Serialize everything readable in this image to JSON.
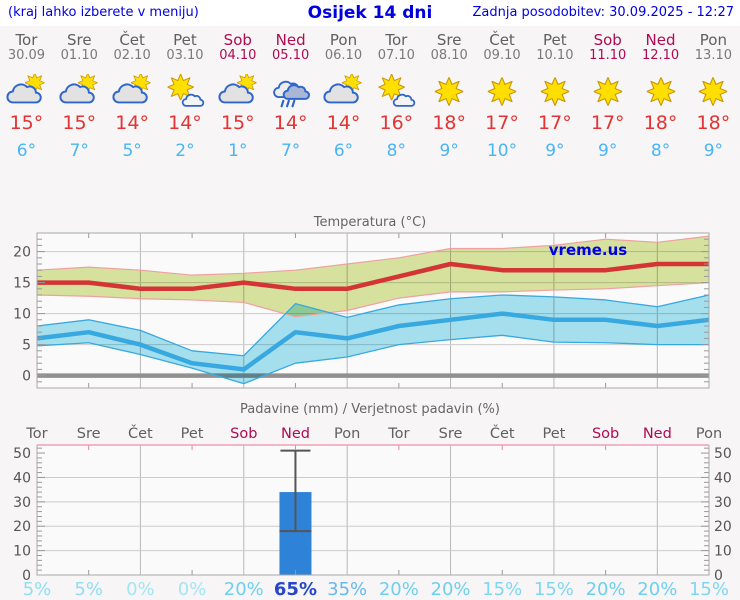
{
  "header": {
    "note": "(kraj lahko izberete v meniju)",
    "title": "Osijek 14 dni",
    "updated": "Zadnja posodobitev: 30.09.2025 - 12:27"
  },
  "watermark": "vreme.us",
  "forecast": {
    "days": [
      {
        "name": "Tor",
        "date": "30.09",
        "icon": "partly-cloudy",
        "high": "15°",
        "low": "6°",
        "weekend": false
      },
      {
        "name": "Sre",
        "date": "01.10",
        "icon": "partly-cloudy",
        "high": "15°",
        "low": "7°",
        "weekend": false
      },
      {
        "name": "Čet",
        "date": "02.10",
        "icon": "partly-cloudy",
        "high": "14°",
        "low": "5°",
        "weekend": false
      },
      {
        "name": "Pet",
        "date": "03.10",
        "icon": "mostly-sunny",
        "high": "14°",
        "low": "2°",
        "weekend": false
      },
      {
        "name": "Sob",
        "date": "04.10",
        "icon": "partly-cloudy",
        "high": "15°",
        "low": "1°",
        "weekend": true
      },
      {
        "name": "Ned",
        "date": "05.10",
        "icon": "rain",
        "high": "14°",
        "low": "7°",
        "weekend": true
      },
      {
        "name": "Pon",
        "date": "06.10",
        "icon": "partly-cloudy",
        "high": "14°",
        "low": "6°",
        "weekend": false
      },
      {
        "name": "Tor",
        "date": "07.10",
        "icon": "mostly-sunny",
        "high": "16°",
        "low": "8°",
        "weekend": false
      },
      {
        "name": "Sre",
        "date": "08.10",
        "icon": "sunny",
        "high": "18°",
        "low": "9°",
        "weekend": false
      },
      {
        "name": "Čet",
        "date": "09.10",
        "icon": "sunny",
        "high": "17°",
        "low": "10°",
        "weekend": false
      },
      {
        "name": "Pet",
        "date": "10.10",
        "icon": "sunny",
        "high": "17°",
        "low": "9°",
        "weekend": false
      },
      {
        "name": "Sob",
        "date": "11.10",
        "icon": "sunny",
        "high": "17°",
        "low": "9°",
        "weekend": true
      },
      {
        "name": "Ned",
        "date": "12.10",
        "icon": "sunny",
        "high": "18°",
        "low": "8°",
        "weekend": true
      },
      {
        "name": "Pon",
        "date": "13.10",
        "icon": "sunny",
        "high": "18°",
        "low": "9°",
        "weekend": false
      }
    ]
  },
  "chart_data": [
    {
      "type": "area",
      "title": "Temperatura (°C)",
      "categories": [
        "Tor",
        "Sre",
        "Čet",
        "Pet",
        "Sob",
        "Ned",
        "Pon",
        "Tor",
        "Sre",
        "Čet",
        "Pet",
        "Sob",
        "Ned",
        "Pon"
      ],
      "ylim": [
        -2,
        23
      ],
      "yticks": [
        0,
        5,
        10,
        15,
        20
      ],
      "grid": true,
      "series": [
        {
          "name": "max-range-upper",
          "values": [
            17,
            17.5,
            17,
            16.2,
            16.5,
            17,
            18,
            19,
            20.5,
            20.5,
            21,
            22,
            21.5,
            22.5
          ]
        },
        {
          "name": "max",
          "values": [
            15,
            15,
            14,
            14,
            15,
            14,
            14,
            16,
            18,
            17,
            17,
            17,
            18,
            18
          ]
        },
        {
          "name": "max-range-lower",
          "values": [
            13,
            12.8,
            12.4,
            12.2,
            11.8,
            9.5,
            10.5,
            12.5,
            13.5,
            13.5,
            13.8,
            14,
            14.5,
            15
          ]
        },
        {
          "name": "min-range-upper",
          "values": [
            8,
            9,
            7.3,
            4,
            3.2,
            11.6,
            9.4,
            11.4,
            12.4,
            13,
            12.7,
            12.2,
            11.1,
            13
          ]
        },
        {
          "name": "min",
          "values": [
            6,
            7,
            5,
            2,
            1,
            7,
            6,
            8,
            9,
            10,
            9,
            9,
            8,
            9
          ]
        },
        {
          "name": "min-range-lower",
          "values": [
            4.8,
            5.3,
            3.4,
            1.2,
            -1.3,
            2,
            3,
            5,
            5.8,
            6.5,
            5.4,
            5.3,
            5,
            5
          ]
        }
      ]
    },
    {
      "type": "bar",
      "title": "Padavine (mm) / Verjetnost padavin (%)",
      "categories": [
        "Tor",
        "Sre",
        "Čet",
        "Pet",
        "Sob",
        "Ned",
        "Pon",
        "Tor",
        "Sre",
        "Čet",
        "Pet",
        "Sob",
        "Ned",
        "Pon"
      ],
      "weekend": [
        false,
        false,
        false,
        false,
        true,
        true,
        false,
        false,
        false,
        false,
        false,
        true,
        true,
        false
      ],
      "ylim": [
        0,
        53
      ],
      "yticks": [
        0,
        10,
        20,
        30,
        40,
        50
      ],
      "grid": true,
      "precip_mm": [
        0,
        0,
        0,
        0,
        0,
        34,
        0,
        0,
        0,
        0,
        0,
        0,
        0,
        0
      ],
      "precip_range": [
        [
          0,
          0
        ],
        [
          0,
          0
        ],
        [
          0,
          0
        ],
        [
          0,
          0
        ],
        [
          0,
          0
        ],
        [
          18,
          51
        ],
        [
          0,
          0
        ],
        [
          0,
          0
        ],
        [
          0,
          0
        ],
        [
          0,
          0
        ],
        [
          0,
          0
        ],
        [
          0,
          0
        ],
        [
          0,
          0
        ],
        [
          0,
          0
        ]
      ],
      "prob_percent": [
        5,
        5,
        0,
        0,
        20,
        65,
        35,
        20,
        20,
        15,
        15,
        20,
        20,
        15
      ],
      "prob_labels": [
        "5%",
        "5%",
        "0%",
        "0%",
        "20%",
        "65%",
        "35%",
        "20%",
        "20%",
        "15%",
        "15%",
        "20%",
        "20%",
        "15%"
      ],
      "prob_colors": [
        "#8fdef4",
        "#8fdef4",
        "#a2e5f6",
        "#a2e5f6",
        "#6dd0f0",
        "#2746c9",
        "#63baf1",
        "#6dd0f0",
        "#6dd0f0",
        "#7ed7f2",
        "#7ed7f2",
        "#6dd0f0",
        "#6dd0f0",
        "#7ed7f2"
      ]
    }
  ],
  "colors": {
    "link_blue": "#0000e0",
    "day_gray": "#606060",
    "date_gray": "#7a7a7a",
    "weekend_red": "#b00a52",
    "high_red": "#e23434",
    "low_blue": "#4ab5f5",
    "chart_title": "#666666",
    "axis_text": "#555555",
    "tmax_line": "#d43434",
    "tmax_band": "#d9e6a0",
    "tmax_edge": "#f0a0a0",
    "tmin_line": "#38a8e0",
    "tmin_band": "#a8e4f2",
    "bar_blue": "#2e82d8",
    "whisker": "#555555",
    "grid_v": "#b8b8b8",
    "grid_h": "#cccccc",
    "zero_line": "#909090",
    "border": "#a8a8a8",
    "tick": "#999999",
    "precip_top_line": "#f0a0b8",
    "precip_top_tick": "#e87fa0",
    "plot_bg": "#fbfafa"
  }
}
